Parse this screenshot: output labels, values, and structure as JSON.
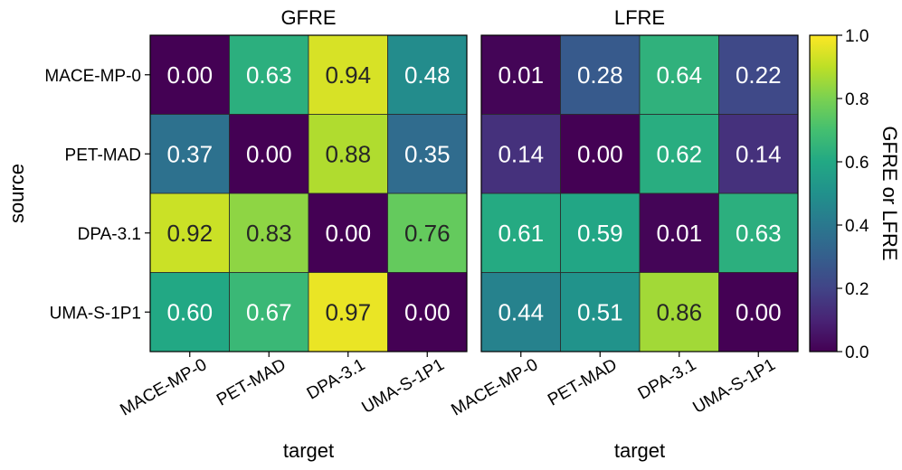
{
  "chart_data": {
    "type": "heatmap",
    "sources": [
      "MACE-MP-0",
      "PET-MAD",
      "DPA-3.1",
      "UMA-S-1P1"
    ],
    "targets": [
      "MACE-MP-0",
      "PET-MAD",
      "DPA-3.1",
      "UMA-S-1P1"
    ],
    "ylabel": "source",
    "xlabel": "target",
    "colormap": "viridis",
    "vmin": 0.0,
    "vmax": 1.0,
    "colorbar": {
      "label": "GFRE or LFRE",
      "ticks": [
        0.0,
        0.2,
        0.4,
        0.6,
        0.8,
        1.0
      ],
      "tick_labels": [
        "0.0",
        "0.2",
        "0.4",
        "0.6",
        "0.8",
        "1.0"
      ]
    },
    "panels": [
      {
        "title": "GFRE",
        "values": [
          [
            0.0,
            0.63,
            0.94,
            0.48
          ],
          [
            0.37,
            0.0,
            0.88,
            0.35
          ],
          [
            0.92,
            0.83,
            0.0,
            0.76
          ],
          [
            0.6,
            0.67,
            0.97,
            0.0
          ]
        ]
      },
      {
        "title": "LFRE",
        "values": [
          [
            0.01,
            0.28,
            0.64,
            0.22
          ],
          [
            0.14,
            0.0,
            0.62,
            0.14
          ],
          [
            0.61,
            0.59,
            0.01,
            0.63
          ],
          [
            0.44,
            0.51,
            0.86,
            0.0
          ]
        ]
      }
    ]
  }
}
